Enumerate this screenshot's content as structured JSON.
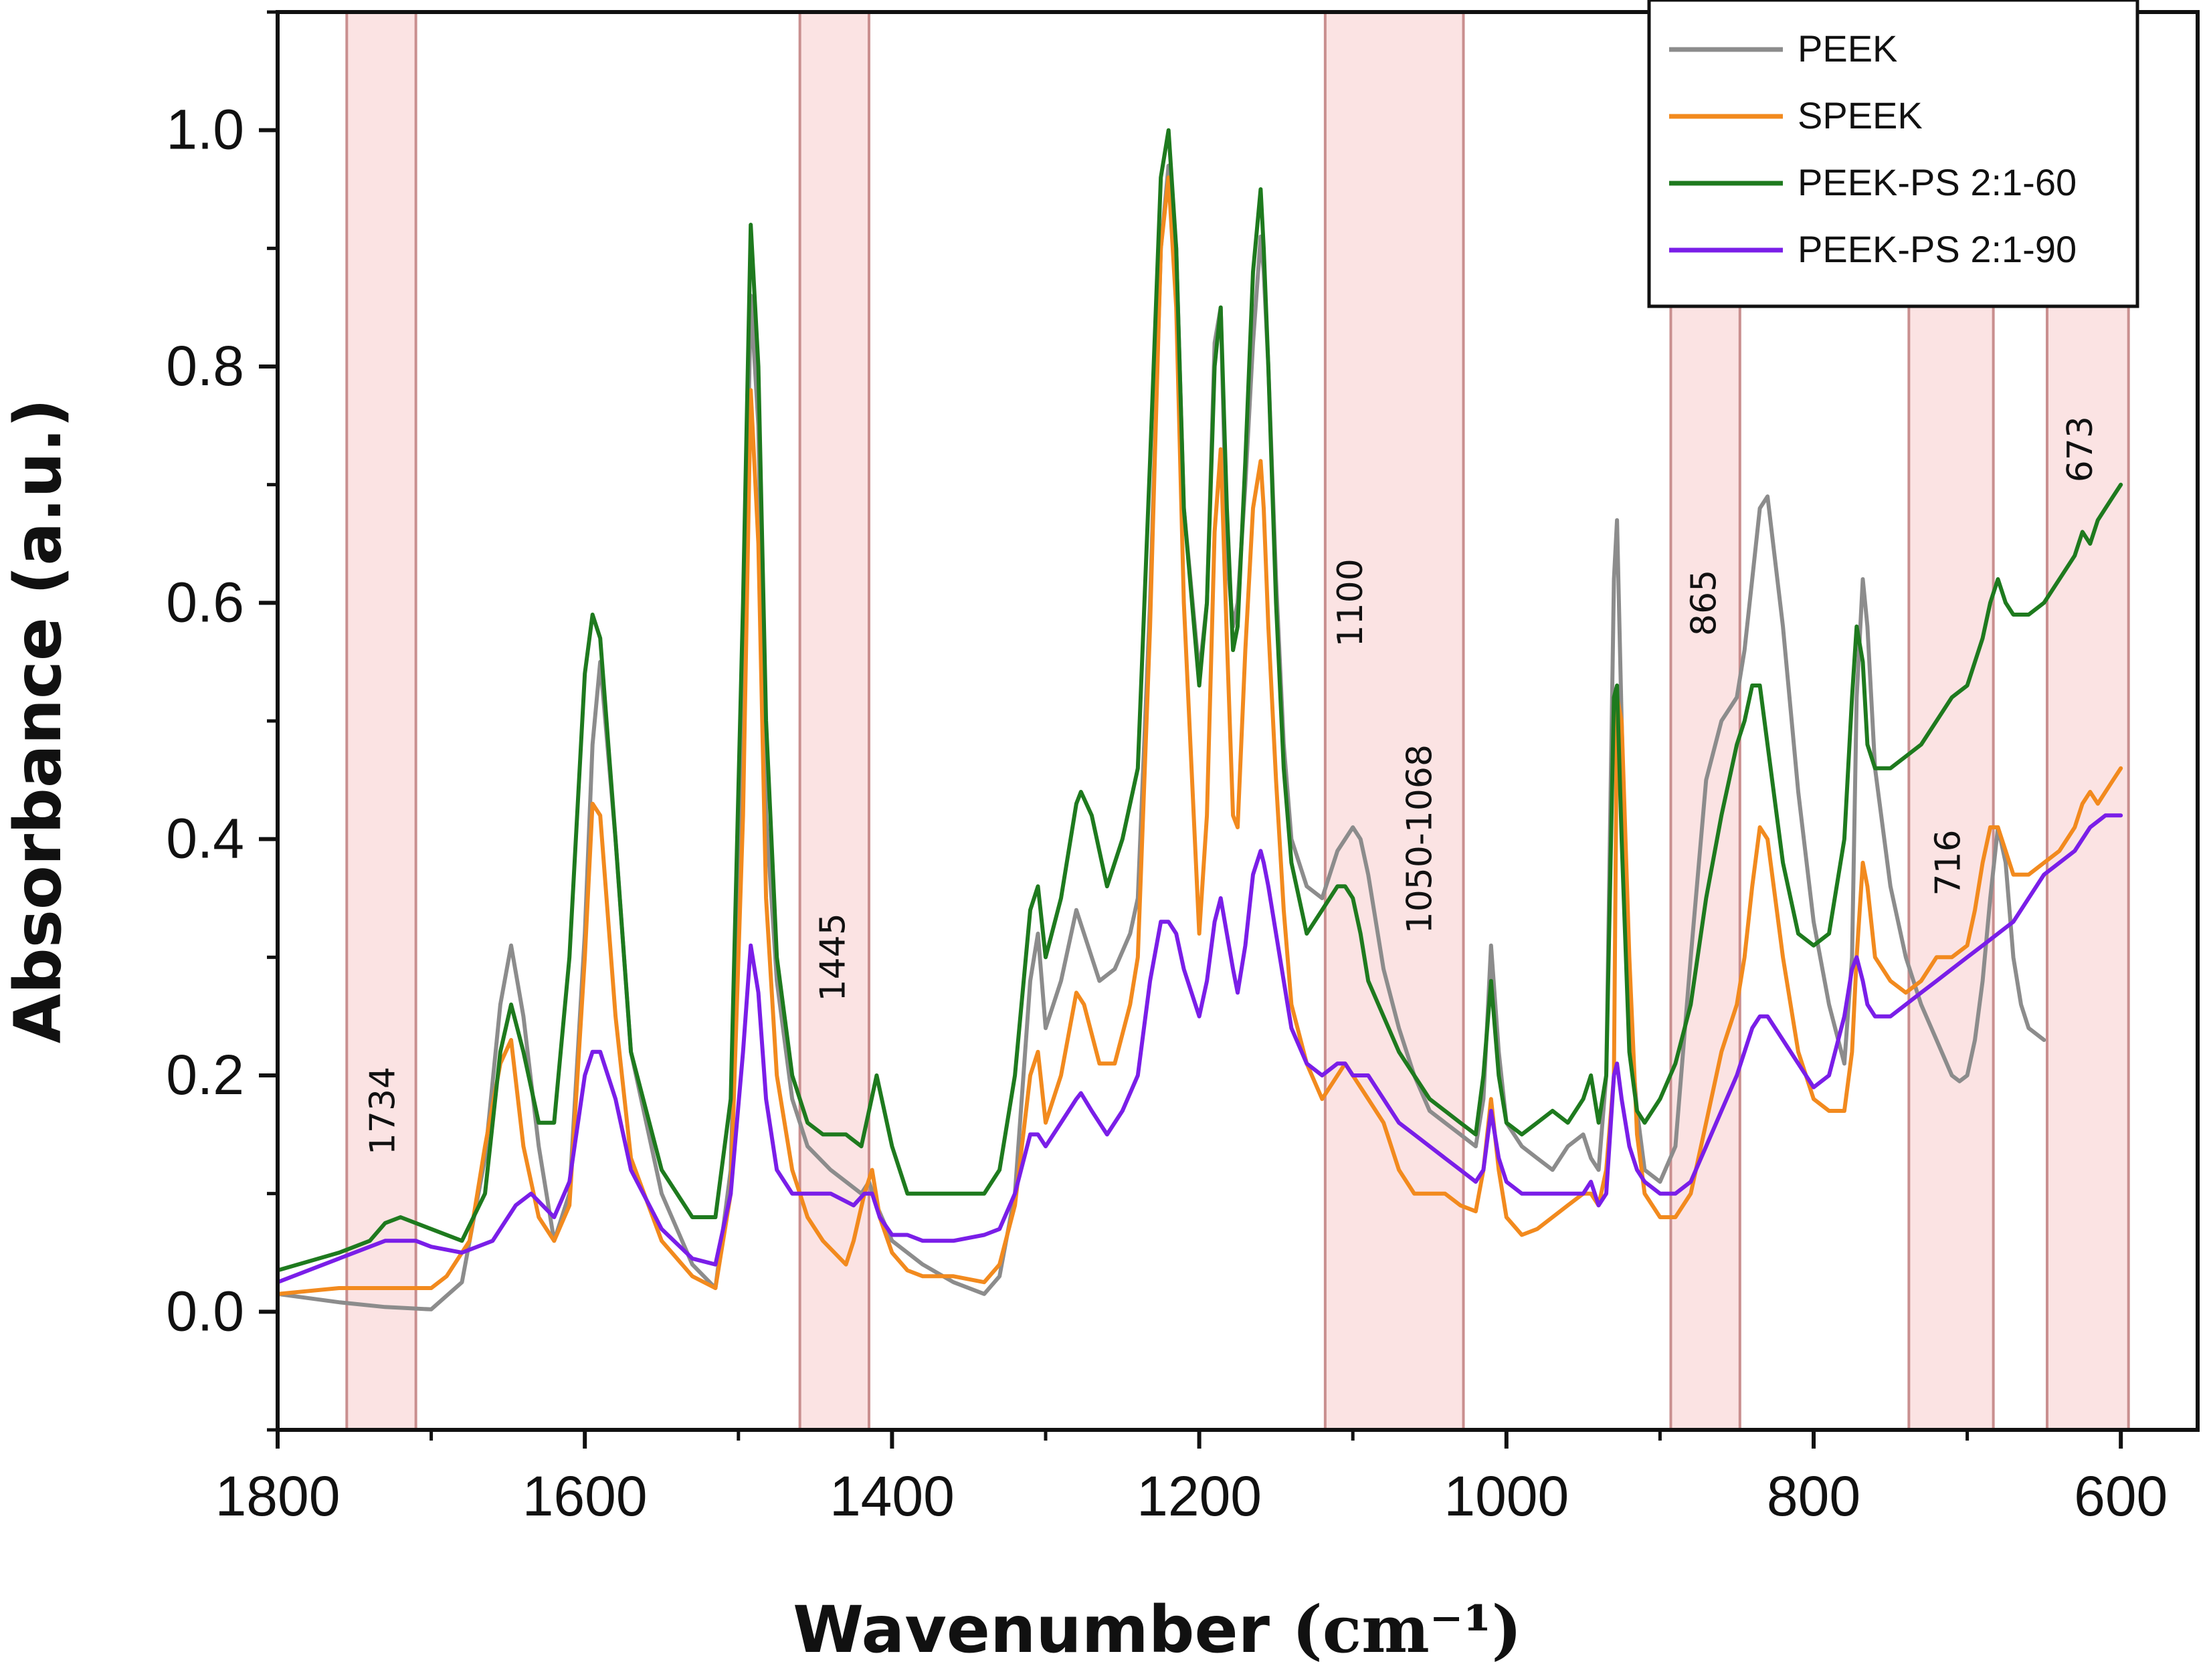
{
  "chart_data": {
    "type": "line",
    "title": "",
    "xlabel": "Wavenumber",
    "xlabel_unit": "(cm⁻¹)",
    "ylabel": "Absorbance (a.u.)",
    "xlim": [
      1800,
      550
    ],
    "ylim": [
      -0.1,
      1.1
    ],
    "x_reversed": true,
    "grid": false,
    "legend_position": "top-right",
    "xticks": [
      1800,
      1600,
      1400,
      1200,
      1000,
      800,
      600
    ],
    "xtick_labels": [
      "1800",
      "1600",
      "1400",
      "1200",
      "1000",
      "800",
      "600"
    ],
    "yticks": [
      0.0,
      0.2,
      0.4,
      0.6,
      0.8,
      1.0
    ],
    "ytick_labels": [
      "0.0",
      "0.2",
      "0.4",
      "0.6",
      "0.8",
      "1.0"
    ],
    "bands": [
      {
        "label": "1734",
        "from": 1755,
        "to": 1710,
        "label_x": 1730,
        "label_y": 0.17
      },
      {
        "label": "1445",
        "from": 1460,
        "to": 1415,
        "label_x": 1437,
        "label_y": 0.3
      },
      {
        "label": "1100",
        "from": 1118,
        "to": 1028,
        "label_x": 1100,
        "label_y": 0.6
      },
      {
        "label": "1050-1068",
        "from": 1118,
        "to": 1028,
        "label_x": 1055,
        "label_y": 0.4
      },
      {
        "label": "865",
        "from": 893,
        "to": 848,
        "label_x": 870,
        "label_y": 0.6
      },
      {
        "label": "716",
        "from": 738,
        "to": 683,
        "label_x": 711,
        "label_y": 0.38
      },
      {
        "label": "673",
        "from": 648,
        "to": 595,
        "label_x": 625,
        "label_y": 0.73
      }
    ],
    "series": [
      {
        "name": "PEEK",
        "color": "#8c8c8c",
        "x": [
          1800,
          1760,
          1730,
          1700,
          1680,
          1665,
          1655,
          1648,
          1640,
          1630,
          1620,
          1610,
          1600,
          1595,
          1590,
          1580,
          1570,
          1550,
          1530,
          1515,
          1505,
          1497,
          1492,
          1487,
          1482,
          1475,
          1465,
          1455,
          1440,
          1420,
          1415,
          1410,
          1400,
          1380,
          1360,
          1340,
          1330,
          1320,
          1310,
          1305,
          1300,
          1290,
          1280,
          1270,
          1265,
          1255,
          1245,
          1240,
          1232,
          1225,
          1220,
          1215,
          1210,
          1200,
          1195,
          1190,
          1186,
          1182,
          1178,
          1175,
          1170,
          1165,
          1160,
          1158,
          1155,
          1150,
          1145,
          1140,
          1130,
          1120,
          1110,
          1105,
          1100,
          1095,
          1090,
          1080,
          1070,
          1060,
          1050,
          1040,
          1030,
          1020,
          1015,
          1010,
          1005,
          1000,
          990,
          980,
          970,
          960,
          950,
          945,
          940,
          935,
          930,
          928,
          925,
          920,
          915,
          910,
          900,
          890,
          880,
          870,
          860,
          850,
          845,
          840,
          835,
          830,
          820,
          810,
          800,
          790,
          780,
          775,
          772,
          768,
          765,
          760,
          750,
          740,
          730,
          720,
          710,
          705,
          700,
          695,
          690,
          685,
          680,
          675,
          670,
          665,
          660,
          650
        ],
        "y": [
          0.015,
          0.008,
          0.004,
          0.002,
          0.025,
          0.13,
          0.26,
          0.31,
          0.25,
          0.14,
          0.06,
          0.1,
          0.32,
          0.48,
          0.55,
          0.4,
          0.22,
          0.1,
          0.04,
          0.02,
          0.12,
          0.5,
          0.86,
          0.75,
          0.42,
          0.28,
          0.18,
          0.14,
          0.12,
          0.1,
          0.11,
          0.09,
          0.06,
          0.04,
          0.025,
          0.015,
          0.03,
          0.1,
          0.28,
          0.32,
          0.24,
          0.28,
          0.34,
          0.3,
          0.28,
          0.29,
          0.32,
          0.35,
          0.6,
          0.9,
          0.97,
          0.9,
          0.68,
          0.54,
          0.6,
          0.82,
          0.85,
          0.64,
          0.58,
          0.6,
          0.7,
          0.82,
          0.91,
          0.88,
          0.8,
          0.62,
          0.48,
          0.4,
          0.36,
          0.35,
          0.39,
          0.4,
          0.41,
          0.4,
          0.37,
          0.29,
          0.24,
          0.2,
          0.17,
          0.16,
          0.15,
          0.14,
          0.18,
          0.31,
          0.22,
          0.16,
          0.14,
          0.13,
          0.12,
          0.14,
          0.15,
          0.13,
          0.12,
          0.2,
          0.62,
          0.67,
          0.5,
          0.25,
          0.17,
          0.12,
          0.11,
          0.14,
          0.3,
          0.45,
          0.5,
          0.52,
          0.56,
          0.62,
          0.68,
          0.69,
          0.58,
          0.44,
          0.33,
          0.26,
          0.21,
          0.3,
          0.52,
          0.62,
          0.58,
          0.46,
          0.36,
          0.3,
          0.26,
          0.23,
          0.2,
          0.195,
          0.2,
          0.23,
          0.28,
          0.35,
          0.41,
          0.38,
          0.3,
          0.26,
          0.24,
          0.23
        ]
      },
      {
        "name": "SPEEK",
        "color": "#f28a1e",
        "x": [
          1800,
          1760,
          1720,
          1700,
          1690,
          1675,
          1665,
          1655,
          1648,
          1640,
          1630,
          1620,
          1610,
          1600,
          1595,
          1590,
          1580,
          1570,
          1550,
          1530,
          1515,
          1505,
          1497,
          1492,
          1487,
          1482,
          1475,
          1465,
          1455,
          1445,
          1430,
          1425,
          1418,
          1413,
          1408,
          1400,
          1390,
          1380,
          1360,
          1340,
          1330,
          1320,
          1310,
          1305,
          1300,
          1290,
          1280,
          1275,
          1265,
          1255,
          1245,
          1240,
          1232,
          1225,
          1220,
          1215,
          1210,
          1200,
          1195,
          1190,
          1186,
          1182,
          1178,
          1175,
          1170,
          1165,
          1160,
          1158,
          1155,
          1150,
          1145,
          1140,
          1130,
          1120,
          1110,
          1105,
          1100,
          1090,
          1080,
          1070,
          1060,
          1050,
          1040,
          1030,
          1020,
          1015,
          1010,
          1005,
          1000,
          990,
          980,
          970,
          960,
          950,
          945,
          940,
          935,
          930,
          928,
          925,
          920,
          915,
          910,
          900,
          890,
          880,
          870,
          860,
          850,
          845,
          840,
          835,
          830,
          820,
          810,
          800,
          790,
          780,
          775,
          772,
          768,
          765,
          760,
          750,
          740,
          730,
          720,
          710,
          700,
          695,
          690,
          685,
          680,
          675,
          670,
          660,
          650,
          640,
          630,
          625,
          620,
          615,
          610,
          605,
          600
        ],
        "y": [
          0.015,
          0.02,
          0.02,
          0.02,
          0.03,
          0.06,
          0.14,
          0.21,
          0.23,
          0.14,
          0.08,
          0.06,
          0.09,
          0.3,
          0.43,
          0.42,
          0.25,
          0.13,
          0.06,
          0.03,
          0.02,
          0.1,
          0.42,
          0.78,
          0.65,
          0.35,
          0.2,
          0.12,
          0.08,
          0.06,
          0.04,
          0.06,
          0.1,
          0.12,
          0.08,
          0.05,
          0.035,
          0.03,
          0.03,
          0.025,
          0.04,
          0.09,
          0.2,
          0.22,
          0.16,
          0.2,
          0.27,
          0.26,
          0.21,
          0.21,
          0.26,
          0.3,
          0.58,
          0.9,
          0.96,
          0.85,
          0.6,
          0.32,
          0.42,
          0.66,
          0.73,
          0.57,
          0.42,
          0.41,
          0.56,
          0.68,
          0.72,
          0.68,
          0.58,
          0.45,
          0.34,
          0.26,
          0.21,
          0.18,
          0.2,
          0.21,
          0.2,
          0.18,
          0.16,
          0.12,
          0.1,
          0.1,
          0.1,
          0.09,
          0.085,
          0.12,
          0.18,
          0.12,
          0.08,
          0.065,
          0.07,
          0.08,
          0.09,
          0.1,
          0.1,
          0.09,
          0.12,
          0.2,
          0.52,
          0.5,
          0.3,
          0.15,
          0.1,
          0.08,
          0.08,
          0.1,
          0.16,
          0.22,
          0.26,
          0.3,
          0.36,
          0.41,
          0.4,
          0.3,
          0.22,
          0.18,
          0.17,
          0.17,
          0.22,
          0.3,
          0.38,
          0.36,
          0.3,
          0.28,
          0.27,
          0.28,
          0.3,
          0.3,
          0.31,
          0.34,
          0.38,
          0.41,
          0.41,
          0.39,
          0.37,
          0.37,
          0.38,
          0.39,
          0.41,
          0.43,
          0.44,
          0.43,
          0.44,
          0.45,
          0.46
        ]
      },
      {
        "name": "PEEK-PS 2:1-60",
        "color": "#1e7a1e",
        "x": [
          1800,
          1760,
          1740,
          1730,
          1720,
          1700,
          1680,
          1665,
          1655,
          1648,
          1640,
          1630,
          1620,
          1610,
          1600,
          1595,
          1590,
          1580,
          1570,
          1550,
          1530,
          1515,
          1505,
          1497,
          1492,
          1487,
          1482,
          1475,
          1465,
          1455,
          1445,
          1430,
          1420,
          1415,
          1410,
          1400,
          1390,
          1380,
          1360,
          1340,
          1330,
          1320,
          1310,
          1305,
          1300,
          1290,
          1280,
          1277,
          1270,
          1260,
          1250,
          1240,
          1232,
          1225,
          1220,
          1215,
          1210,
          1200,
          1195,
          1190,
          1186,
          1182,
          1178,
          1175,
          1170,
          1165,
          1160,
          1158,
          1155,
          1150,
          1145,
          1140,
          1130,
          1120,
          1110,
          1105,
          1100,
          1095,
          1090,
          1080,
          1070,
          1060,
          1050,
          1040,
          1030,
          1020,
          1015,
          1010,
          1005,
          1000,
          990,
          980,
          970,
          960,
          950,
          945,
          940,
          935,
          930,
          928,
          925,
          920,
          915,
          910,
          900,
          890,
          880,
          870,
          860,
          850,
          845,
          840,
          835,
          830,
          820,
          810,
          800,
          790,
          780,
          775,
          772,
          768,
          765,
          760,
          750,
          740,
          730,
          720,
          710,
          700,
          695,
          690,
          685,
          680,
          675,
          670,
          660,
          650,
          640,
          630,
          625,
          620,
          615,
          610,
          605,
          600
        ],
        "y": [
          0.035,
          0.05,
          0.06,
          0.075,
          0.08,
          0.07,
          0.06,
          0.1,
          0.22,
          0.26,
          0.22,
          0.16,
          0.16,
          0.3,
          0.54,
          0.59,
          0.57,
          0.4,
          0.22,
          0.12,
          0.08,
          0.08,
          0.18,
          0.6,
          0.92,
          0.8,
          0.5,
          0.3,
          0.2,
          0.16,
          0.15,
          0.15,
          0.14,
          0.17,
          0.2,
          0.14,
          0.1,
          0.1,
          0.1,
          0.1,
          0.12,
          0.2,
          0.34,
          0.36,
          0.3,
          0.35,
          0.43,
          0.44,
          0.42,
          0.36,
          0.4,
          0.46,
          0.72,
          0.96,
          1.0,
          0.9,
          0.68,
          0.53,
          0.6,
          0.8,
          0.85,
          0.68,
          0.56,
          0.58,
          0.72,
          0.88,
          0.95,
          0.9,
          0.8,
          0.6,
          0.46,
          0.38,
          0.32,
          0.34,
          0.36,
          0.36,
          0.35,
          0.32,
          0.28,
          0.25,
          0.22,
          0.2,
          0.18,
          0.17,
          0.16,
          0.15,
          0.2,
          0.28,
          0.2,
          0.16,
          0.15,
          0.16,
          0.17,
          0.16,
          0.18,
          0.2,
          0.16,
          0.2,
          0.52,
          0.53,
          0.4,
          0.22,
          0.17,
          0.16,
          0.18,
          0.21,
          0.26,
          0.35,
          0.42,
          0.48,
          0.5,
          0.53,
          0.53,
          0.48,
          0.38,
          0.32,
          0.31,
          0.32,
          0.4,
          0.52,
          0.58,
          0.55,
          0.48,
          0.46,
          0.46,
          0.47,
          0.48,
          0.5,
          0.52,
          0.53,
          0.55,
          0.57,
          0.6,
          0.62,
          0.6,
          0.59,
          0.59,
          0.6,
          0.62,
          0.64,
          0.66,
          0.65,
          0.67,
          0.68,
          0.69,
          0.7
        ]
      },
      {
        "name": "PEEK-PS 2:1-90",
        "color": "#7a1ee8",
        "x": [
          1800,
          1760,
          1730,
          1710,
          1700,
          1680,
          1660,
          1645,
          1635,
          1620,
          1610,
          1600,
          1595,
          1590,
          1580,
          1570,
          1550,
          1530,
          1515,
          1505,
          1497,
          1492,
          1487,
          1482,
          1475,
          1465,
          1455,
          1440,
          1425,
          1418,
          1413,
          1408,
          1400,
          1390,
          1380,
          1360,
          1340,
          1330,
          1320,
          1310,
          1305,
          1300,
          1290,
          1280,
          1277,
          1270,
          1260,
          1250,
          1240,
          1232,
          1225,
          1220,
          1215,
          1210,
          1200,
          1195,
          1190,
          1186,
          1182,
          1178,
          1175,
          1170,
          1165,
          1160,
          1158,
          1155,
          1150,
          1145,
          1140,
          1130,
          1120,
          1110,
          1105,
          1100,
          1090,
          1080,
          1070,
          1060,
          1050,
          1040,
          1030,
          1020,
          1015,
          1010,
          1005,
          1000,
          990,
          980,
          970,
          960,
          950,
          945,
          940,
          935,
          930,
          928,
          925,
          920,
          915,
          910,
          900,
          890,
          880,
          870,
          860,
          850,
          845,
          840,
          835,
          830,
          820,
          810,
          800,
          790,
          780,
          775,
          772,
          768,
          765,
          760,
          750,
          740,
          730,
          720,
          710,
          700,
          690,
          680,
          670,
          660,
          650,
          640,
          630,
          620,
          610,
          605,
          600
        ],
        "y": [
          0.025,
          0.045,
          0.06,
          0.06,
          0.055,
          0.05,
          0.06,
          0.09,
          0.1,
          0.08,
          0.11,
          0.2,
          0.22,
          0.22,
          0.18,
          0.12,
          0.07,
          0.045,
          0.04,
          0.1,
          0.22,
          0.31,
          0.27,
          0.18,
          0.12,
          0.1,
          0.1,
          0.1,
          0.09,
          0.1,
          0.1,
          0.08,
          0.065,
          0.065,
          0.06,
          0.06,
          0.065,
          0.07,
          0.1,
          0.15,
          0.15,
          0.14,
          0.16,
          0.18,
          0.185,
          0.17,
          0.15,
          0.17,
          0.2,
          0.28,
          0.33,
          0.33,
          0.32,
          0.29,
          0.25,
          0.28,
          0.33,
          0.35,
          0.32,
          0.29,
          0.27,
          0.31,
          0.37,
          0.39,
          0.38,
          0.36,
          0.32,
          0.28,
          0.24,
          0.21,
          0.2,
          0.21,
          0.21,
          0.2,
          0.2,
          0.18,
          0.16,
          0.15,
          0.14,
          0.13,
          0.12,
          0.11,
          0.12,
          0.17,
          0.13,
          0.11,
          0.1,
          0.1,
          0.1,
          0.1,
          0.1,
          0.11,
          0.09,
          0.1,
          0.2,
          0.21,
          0.18,
          0.14,
          0.12,
          0.11,
          0.1,
          0.1,
          0.11,
          0.14,
          0.17,
          0.2,
          0.22,
          0.24,
          0.25,
          0.25,
          0.23,
          0.21,
          0.19,
          0.2,
          0.25,
          0.29,
          0.3,
          0.28,
          0.26,
          0.25,
          0.25,
          0.26,
          0.27,
          0.28,
          0.29,
          0.3,
          0.31,
          0.32,
          0.33,
          0.35,
          0.37,
          0.38,
          0.39,
          0.41,
          0.42,
          0.42,
          0.42
        ]
      }
    ]
  }
}
